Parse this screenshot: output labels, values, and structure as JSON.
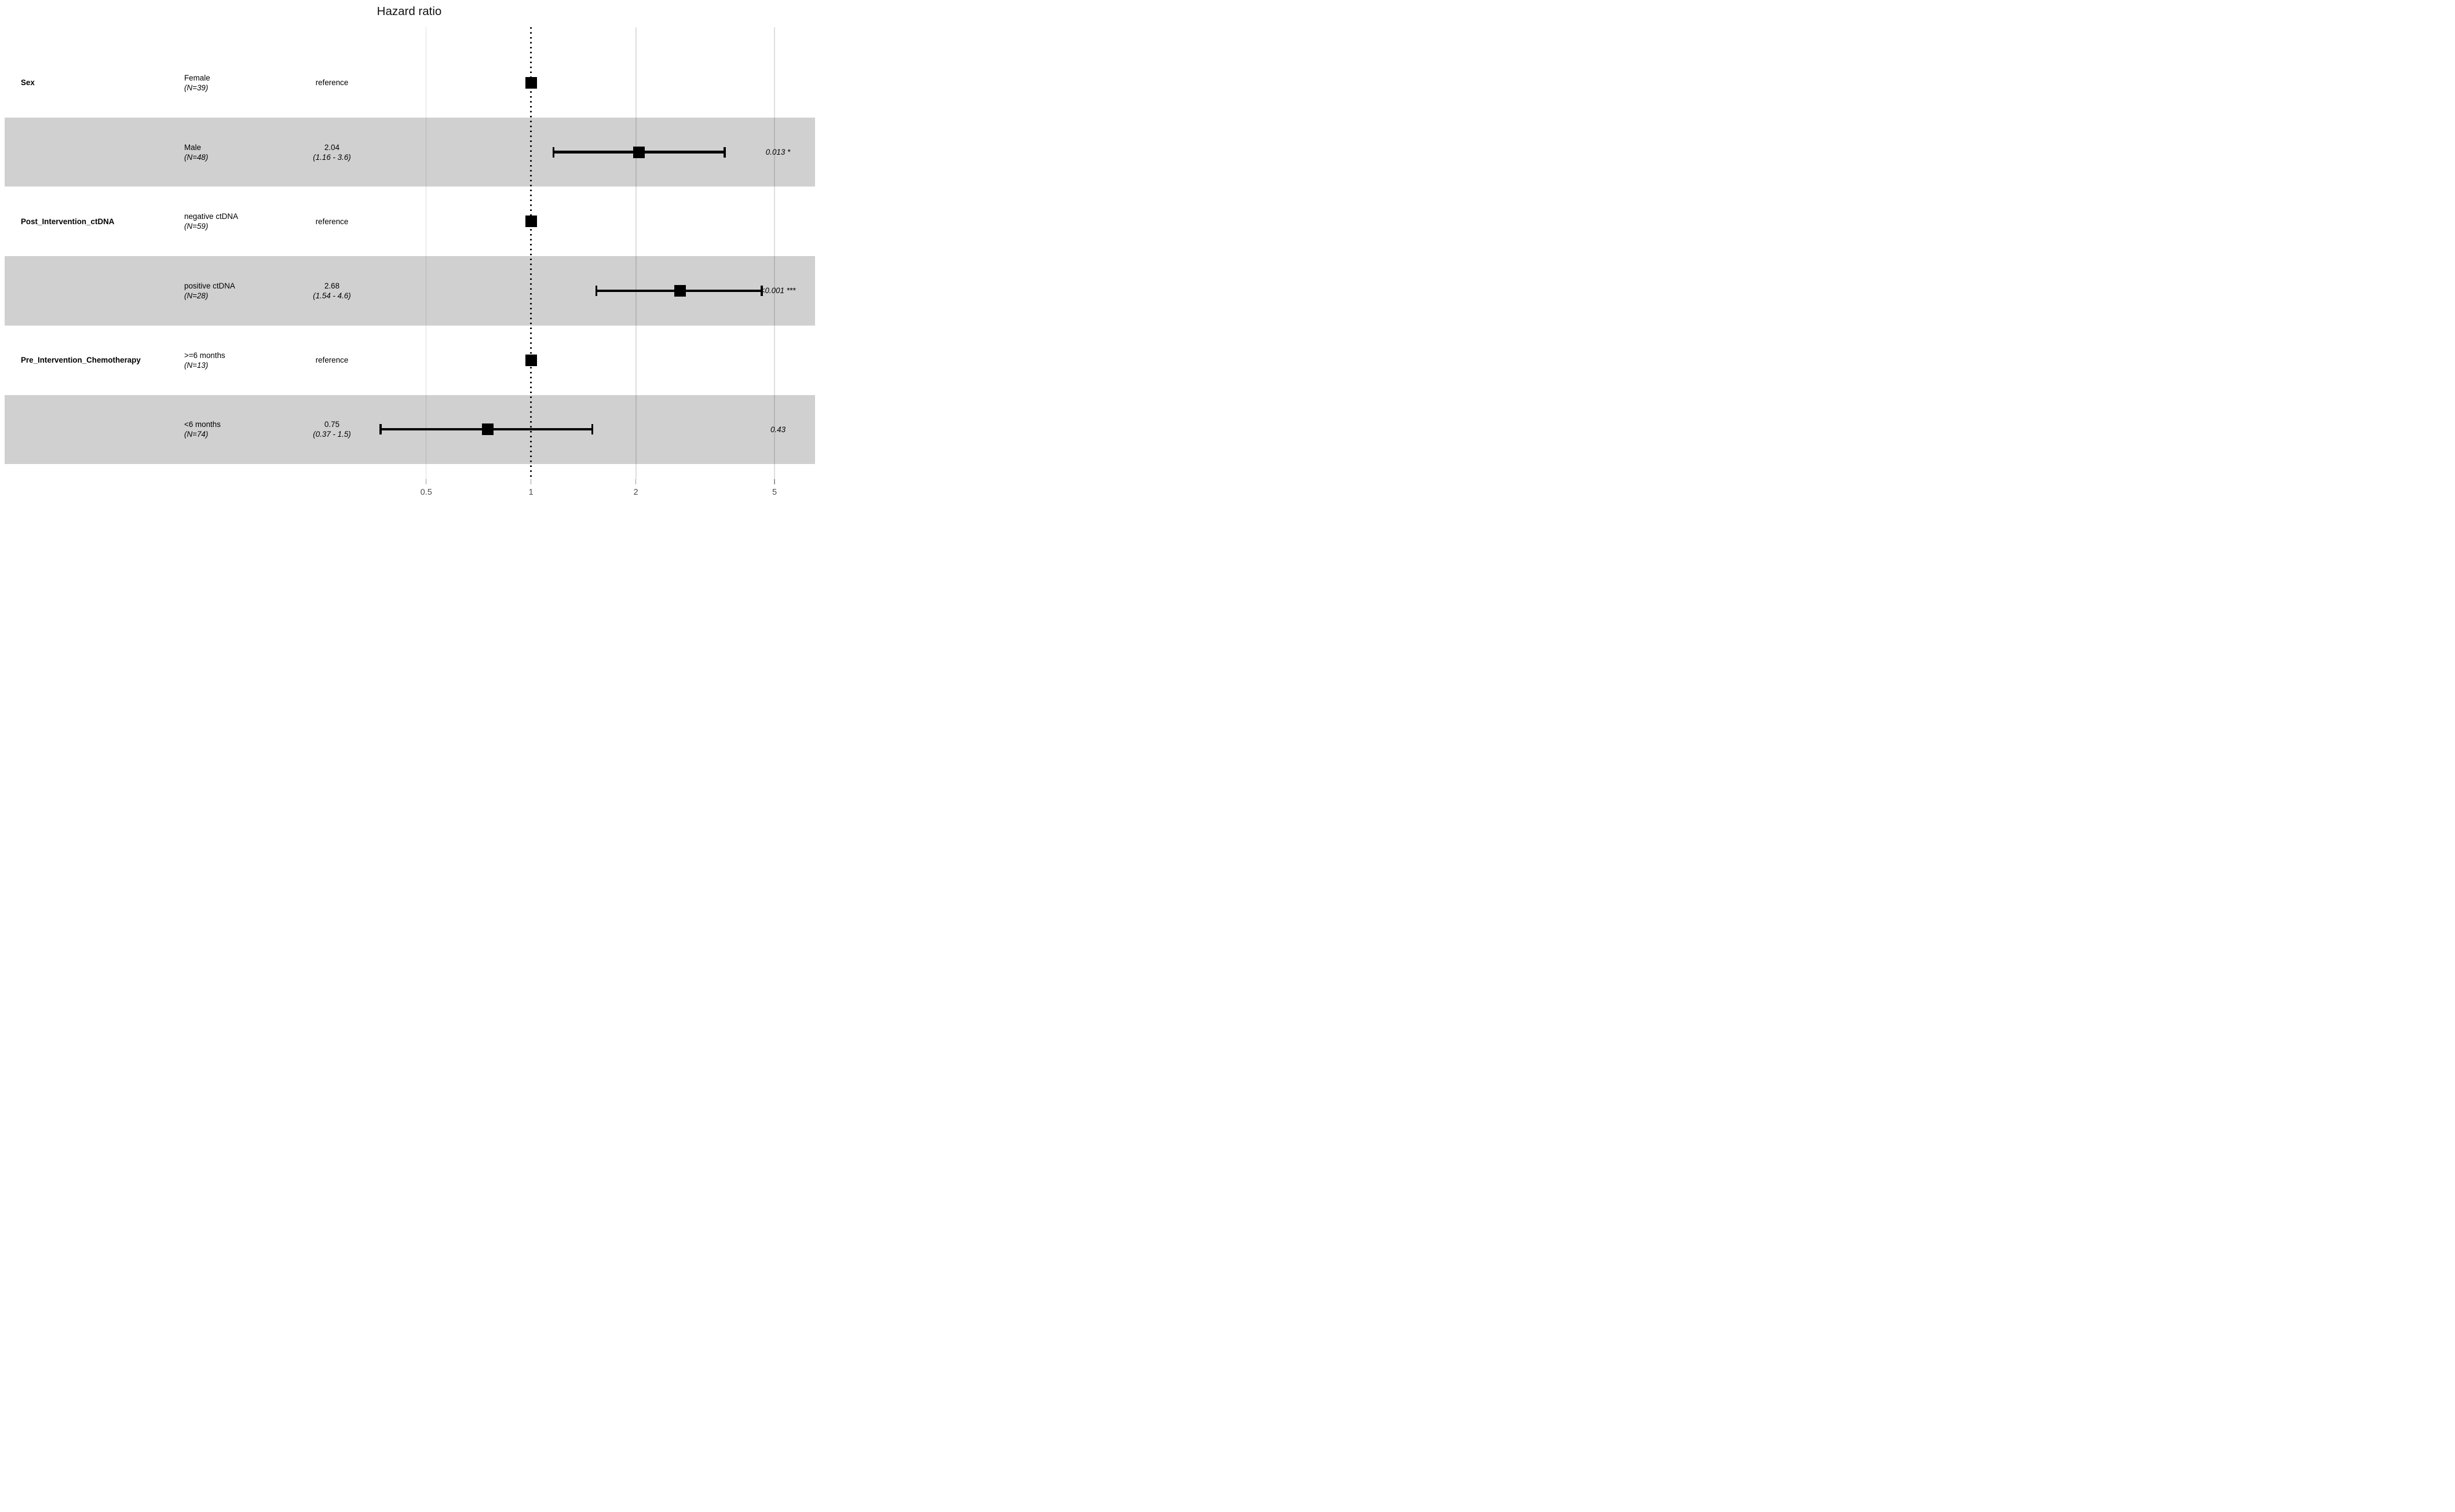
{
  "title": "Hazard ratio",
  "axis": {
    "scale": "log10",
    "ticks": [
      0.5,
      1,
      2,
      5
    ],
    "tick_labels": [
      "0.5",
      "1",
      "2",
      "5"
    ],
    "reference_line": 1
  },
  "colors": {
    "background": "#ffffff",
    "band": "#d0d0d0",
    "gridline": "rgba(0,0,0,0.13)",
    "marker": "#000000",
    "reference_dotted_line": "#000000",
    "axis_text": "#4d4d4d"
  },
  "chart_data": {
    "type": "forest",
    "title": "Hazard ratio",
    "xscale": "log10",
    "xticks": [
      0.5,
      1,
      2,
      5
    ],
    "reference_value": 1,
    "rows": [
      {
        "variable": "Sex",
        "level": "Female",
        "n_label": "(N=39)",
        "estimate_label": "reference",
        "hr": 1,
        "is_reference": true,
        "p": "",
        "shaded": false
      },
      {
        "variable": "",
        "level": "Male",
        "n_label": "(N=48)",
        "estimate_label": "2.04",
        "ci_label": "(1.16 - 3.6)",
        "hr": 2.04,
        "ci_low": 1.16,
        "ci_high": 3.6,
        "is_reference": false,
        "p": "0.013 *",
        "shaded": true
      },
      {
        "variable": "Post_Intervention_ctDNA",
        "level": "negative ctDNA",
        "n_label": "(N=59)",
        "estimate_label": "reference",
        "hr": 1,
        "is_reference": true,
        "p": "",
        "shaded": false
      },
      {
        "variable": "",
        "level": "positive ctDNA",
        "n_label": "(N=28)",
        "estimate_label": "2.68",
        "ci_label": "(1.54 - 4.6)",
        "hr": 2.68,
        "ci_low": 1.54,
        "ci_high": 4.6,
        "is_reference": false,
        "p": "<0.001 ***",
        "shaded": true
      },
      {
        "variable": "Pre_Intervention_Chemotherapy",
        "level": ">=6 months",
        "n_label": "(N=13)",
        "estimate_label": "reference",
        "hr": 1,
        "is_reference": true,
        "p": "",
        "shaded": false
      },
      {
        "variable": "",
        "level": "<6 months",
        "n_label": "(N=74)",
        "estimate_label": "0.75",
        "ci_label": "(0.37 - 1.5)",
        "hr": 0.75,
        "ci_low": 0.37,
        "ci_high": 1.5,
        "is_reference": false,
        "p": "0.43",
        "shaded": true
      }
    ]
  }
}
